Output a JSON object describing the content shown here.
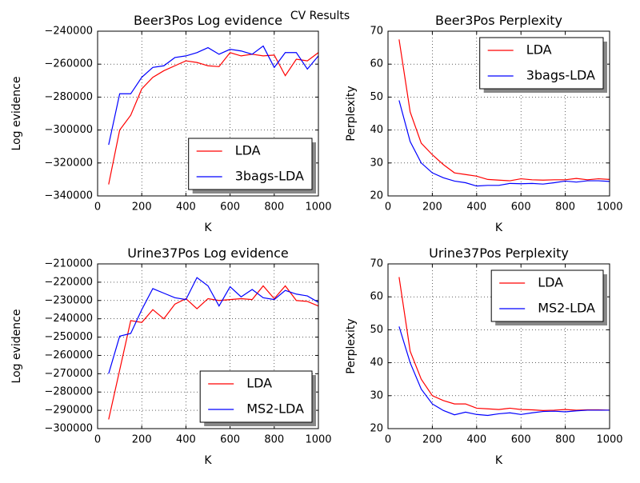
{
  "title": "CV Results",
  "chart_data": [
    {
      "type": "line",
      "title": "Beer3Pos Log evidence",
      "xlabel": "K",
      "ylabel": "Log evidence",
      "x": [
        50,
        100,
        150,
        200,
        250,
        300,
        350,
        400,
        450,
        500,
        550,
        600,
        650,
        700,
        750,
        800,
        850,
        900,
        950,
        1000
      ],
      "series": [
        {
          "name": "LDA",
          "color": "#ff0000",
          "values": [
            -333000,
            -300000,
            -291000,
            -275000,
            -268000,
            -264000,
            -261000,
            -258000,
            -259000,
            -261000,
            -261500,
            -253000,
            -255000,
            -254000,
            -255000,
            -254500,
            -267000,
            -257000,
            -258000,
            -253000
          ]
        },
        {
          "name": "3bags-LDA",
          "color": "#0000ff",
          "values": [
            -309000,
            -278000,
            -278000,
            -268000,
            -262000,
            -261000,
            -256000,
            -255000,
            -253000,
            -250000,
            -254000,
            -251000,
            -252000,
            -254000,
            -249000,
            -262000,
            -253000,
            -253000,
            -263000,
            -255000
          ]
        }
      ],
      "xlim": [
        0,
        1000
      ],
      "xticks": [
        0,
        200,
        400,
        600,
        800,
        1000
      ],
      "ylim": [
        -340000,
        -240000
      ],
      "yticks": [
        {
          "value": -340000,
          "label": "−340000"
        },
        {
          "value": -320000,
          "label": "−320000"
        },
        {
          "value": -300000,
          "label": "−300000"
        },
        {
          "value": -280000,
          "label": "−280000"
        },
        {
          "value": -260000,
          "label": "−260000"
        },
        {
          "value": -240000,
          "label": "−240000"
        }
      ],
      "grid": true,
      "legend_loc": "lower right"
    },
    {
      "type": "line",
      "title": "Beer3Pos Perplexity",
      "xlabel": "K",
      "ylabel": "Perplexity",
      "x": [
        50,
        100,
        150,
        200,
        250,
        300,
        350,
        400,
        450,
        500,
        550,
        600,
        650,
        700,
        750,
        800,
        850,
        900,
        950,
        1000
      ],
      "series": [
        {
          "name": "LDA",
          "color": "#ff0000",
          "values": [
            67.5,
            45.5,
            36,
            32.5,
            29.5,
            27,
            26.5,
            26,
            25,
            24.8,
            24.6,
            25.2,
            24.9,
            24.8,
            24.9,
            24.9,
            25.3,
            24.9,
            25.2,
            25
          ]
        },
        {
          "name": "3bags-LDA",
          "color": "#0000ff",
          "values": [
            49,
            36.5,
            30,
            27,
            25.5,
            24.5,
            24,
            23,
            23.2,
            23.2,
            23.8,
            23.7,
            23.8,
            23.6,
            24,
            24.5,
            24.2,
            24.6,
            24.6,
            24.4
          ]
        }
      ],
      "xlim": [
        0,
        1000
      ],
      "xticks": [
        0,
        200,
        400,
        600,
        800,
        1000
      ],
      "ylim": [
        20,
        70
      ],
      "yticks": [
        20,
        30,
        40,
        50,
        60,
        70
      ],
      "grid": true,
      "legend_loc": "upper right"
    },
    {
      "type": "line",
      "title": "Urine37Pos Log evidence",
      "xlabel": "K",
      "ylabel": "Log evidence",
      "x": [
        50,
        100,
        150,
        200,
        250,
        300,
        350,
        400,
        450,
        500,
        550,
        600,
        650,
        700,
        750,
        800,
        850,
        900,
        950,
        1000
      ],
      "series": [
        {
          "name": "LDA",
          "color": "#ff0000",
          "values": [
            -295000,
            -268000,
            -241000,
            -242000,
            -235000,
            -240000,
            -232000,
            -229000,
            -234500,
            -229000,
            -230000,
            -229500,
            -229000,
            -229500,
            -222000,
            -229000,
            -222000,
            -230000,
            -230500,
            -233000
          ]
        },
        {
          "name": "MS2-LDA",
          "color": "#0000ff",
          "values": [
            -270000,
            -249500,
            -248000,
            -235000,
            -223500,
            -226000,
            -228500,
            -229500,
            -217500,
            -222000,
            -233000,
            -222500,
            -228000,
            -224000,
            -228500,
            -229500,
            -224500,
            -226500,
            -227500,
            -231000
          ]
        }
      ],
      "xlim": [
        0,
        1000
      ],
      "xticks": [
        0,
        200,
        400,
        600,
        800,
        1000
      ],
      "ylim": [
        -300000,
        -210000
      ],
      "yticks": [
        {
          "value": -300000,
          "label": "−300000"
        },
        {
          "value": -290000,
          "label": "−290000"
        },
        {
          "value": -280000,
          "label": "−280000"
        },
        {
          "value": -270000,
          "label": "−270000"
        },
        {
          "value": -260000,
          "label": "−260000"
        },
        {
          "value": -250000,
          "label": "−250000"
        },
        {
          "value": -240000,
          "label": "−240000"
        },
        {
          "value": -230000,
          "label": "−230000"
        },
        {
          "value": -220000,
          "label": "−220000"
        },
        {
          "value": -210000,
          "label": "−210000"
        }
      ],
      "grid": true,
      "legend_loc": "lower right"
    },
    {
      "type": "line",
      "title": "Urine37Pos Perplexity",
      "xlabel": "K",
      "ylabel": "Perplexity",
      "x": [
        50,
        100,
        150,
        200,
        250,
        300,
        350,
        400,
        450,
        500,
        550,
        600,
        650,
        700,
        750,
        800,
        850,
        900,
        950,
        1000
      ],
      "series": [
        {
          "name": "LDA",
          "color": "#ff0000",
          "values": [
            66,
            43.5,
            35,
            30,
            28.5,
            27.5,
            27.5,
            26.2,
            26,
            25.8,
            26.2,
            25.8,
            25.7,
            25.5,
            25.6,
            25.8,
            25.6,
            25.7,
            25.7,
            25.6
          ]
        },
        {
          "name": "MS2-LDA",
          "color": "#0000ff",
          "values": [
            51,
            40,
            32,
            27.5,
            25.5,
            24.2,
            25,
            24.3,
            24,
            24.5,
            24.8,
            24.3,
            24.8,
            25.2,
            25.3,
            25.1,
            25.4,
            25.6,
            25.6,
            25.6
          ]
        }
      ],
      "xlim": [
        0,
        1000
      ],
      "xticks": [
        0,
        200,
        400,
        600,
        800,
        1000
      ],
      "ylim": [
        20,
        70
      ],
      "yticks": [
        20,
        30,
        40,
        50,
        60,
        70
      ],
      "grid": true,
      "legend_loc": "upper right"
    }
  ]
}
